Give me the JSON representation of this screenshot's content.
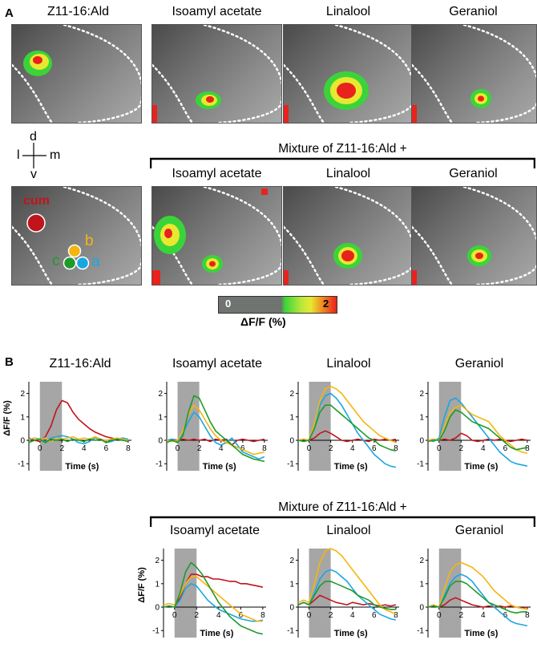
{
  "panel_a": {
    "letter": "A",
    "titles": [
      "Z11-16:Ald",
      "Isoamyl acetate",
      "Linalool",
      "Geraniol"
    ],
    "orientation": {
      "d": "d",
      "l": "l",
      "m": "m",
      "v": "v"
    },
    "mixture_label": "Mixture of Z11-16:Ald +",
    "mixture_titles": [
      "Isoamyl acetate",
      "Linalool",
      "Geraniol"
    ],
    "glomeruli": {
      "cum": "cum",
      "a": "a",
      "b": "b",
      "c": "c"
    },
    "colorbar": {
      "min_label": "0",
      "max_label": "2",
      "title": "ΔF/F (%)"
    }
  },
  "panel_b": {
    "letter": "B",
    "mixture_label": "Mixture of Z11-16:Ald +"
  },
  "colors": {
    "cum": "#c0141b",
    "a": "#1aa7e0",
    "b": "#f5b50f",
    "c": "#1f9a2a"
  },
  "chart_data": [
    {
      "type": "line",
      "title": "Z11-16:Ald",
      "xlabel": "Time (s)",
      "ylabel": "ΔF/F (%)",
      "xlim": [
        -1,
        8.3
      ],
      "ylim": [
        -1.3,
        2.5
      ],
      "x_ticks": [
        0,
        2,
        4,
        6,
        8
      ],
      "y_ticks": [
        -1,
        0,
        1,
        2
      ],
      "stimulus": [
        0,
        2
      ],
      "show_ylabel": true,
      "x": [
        -1,
        -0.5,
        0,
        0.5,
        1,
        1.5,
        2,
        2.5,
        3,
        3.5,
        4,
        4.5,
        5,
        5.5,
        6,
        6.5,
        7,
        7.5,
        8
      ],
      "series": [
        {
          "name": "cum",
          "values": [
            0.1,
            0,
            -0.05,
            0.15,
            0.6,
            1.3,
            1.7,
            1.6,
            1.2,
            0.9,
            0.7,
            0.5,
            0.35,
            0.25,
            0.15,
            0.1,
            0.05,
            0.0,
            0.0
          ]
        },
        {
          "name": "a",
          "values": [
            0,
            0.1,
            0.05,
            -0.05,
            0.1,
            0.15,
            0.2,
            0.15,
            0.05,
            -0.1,
            -0.15,
            -0.05,
            0.1,
            0.05,
            -0.1,
            -0.05,
            0.05,
            0.1,
            0.05
          ]
        },
        {
          "name": "b",
          "values": [
            0.05,
            0.1,
            0,
            0.1,
            -0.05,
            0.1,
            0.05,
            0.1,
            0.15,
            0.05,
            0.1,
            0.05,
            0.15,
            0.05,
            0.0,
            0.05,
            0.1,
            0.05,
            0.0
          ]
        },
        {
          "name": "c",
          "values": [
            -0.1,
            0,
            0.05,
            -0.1,
            0.05,
            0,
            0.05,
            -0.05,
            0.05,
            0,
            -0.05,
            0.05,
            0,
            0.05,
            -0.1,
            0,
            0.05,
            0,
            -0.05
          ]
        }
      ]
    },
    {
      "type": "line",
      "title": "Isoamyl acetate",
      "xlabel": "Time (s)",
      "ylabel": "",
      "xlim": [
        -1,
        8.3
      ],
      "ylim": [
        -1.3,
        2.5
      ],
      "x_ticks": [
        0,
        2,
        4,
        6,
        8
      ],
      "y_ticks": [
        -1,
        0,
        1,
        2
      ],
      "stimulus": [
        0,
        2
      ],
      "show_ylabel": false,
      "x": [
        -1,
        -0.5,
        0,
        0.5,
        1,
        1.5,
        2,
        2.5,
        3,
        3.5,
        4,
        4.5,
        5,
        5.5,
        6,
        6.5,
        7,
        7.5,
        8
      ],
      "series": [
        {
          "name": "cum",
          "values": [
            0,
            0.05,
            0,
            0.05,
            0,
            0.05,
            0,
            0.05,
            -0.05,
            0.05,
            0,
            0.05,
            -0.2,
            0,
            0.05,
            0,
            -0.05,
            0,
            0.05
          ]
        },
        {
          "name": "a",
          "values": [
            0,
            0.05,
            -0.05,
            0.3,
            0.8,
            1.2,
            1.0,
            0.6,
            0.2,
            -0.1,
            -0.2,
            -0.1,
            0.1,
            -0.2,
            -0.5,
            -0.6,
            -0.7,
            -0.8,
            -0.7
          ]
        },
        {
          "name": "b",
          "values": [
            0,
            -0.05,
            0,
            0.4,
            1.1,
            1.5,
            1.3,
            0.9,
            0.5,
            0.2,
            0,
            -0.1,
            -0.2,
            -0.3,
            -0.4,
            -0.5,
            -0.6,
            -0.55,
            -0.5
          ]
        },
        {
          "name": "c",
          "values": [
            -0.1,
            0,
            -0.1,
            0.2,
            1.2,
            1.9,
            1.8,
            1.3,
            0.8,
            0.4,
            0.2,
            0,
            -0.2,
            -0.4,
            -0.6,
            -0.7,
            -0.8,
            -0.85,
            -0.9
          ]
        }
      ]
    },
    {
      "type": "line",
      "title": "Linalool",
      "xlabel": "Time (s)",
      "ylabel": "",
      "xlim": [
        -1,
        8.3
      ],
      "ylim": [
        -1.3,
        2.5
      ],
      "x_ticks": [
        0,
        2,
        4,
        6,
        8
      ],
      "y_ticks": [
        -1,
        0,
        1,
        2
      ],
      "stimulus": [
        0,
        2
      ],
      "show_ylabel": false,
      "x": [
        -1,
        -0.5,
        0,
        0.5,
        1,
        1.5,
        2,
        2.5,
        3,
        3.5,
        4,
        4.5,
        5,
        5.5,
        6,
        6.5,
        7,
        7.5,
        8
      ],
      "series": [
        {
          "name": "cum",
          "values": [
            0,
            0.05,
            0,
            0.1,
            0.3,
            0.4,
            0.3,
            0.15,
            0,
            -0.05,
            0,
            0.05,
            0,
            -0.05,
            0.05,
            0,
            0.05,
            0,
            0.05
          ]
        },
        {
          "name": "a",
          "values": [
            0,
            0.05,
            0,
            0.6,
            1.5,
            1.9,
            2.0,
            1.8,
            1.5,
            1.1,
            0.7,
            0.3,
            0,
            -0.3,
            -0.6,
            -0.8,
            -1.0,
            -1.1,
            -1.15
          ]
        },
        {
          "name": "b",
          "values": [
            0,
            0.05,
            0,
            0.7,
            1.7,
            2.2,
            2.3,
            2.2,
            2.0,
            1.7,
            1.4,
            1.1,
            0.8,
            0.6,
            0.4,
            0.2,
            0.1,
            0,
            -0.1
          ]
        },
        {
          "name": "c",
          "values": [
            0,
            -0.05,
            0,
            0.5,
            1.2,
            1.5,
            1.5,
            1.3,
            1.1,
            0.9,
            0.7,
            0.5,
            0.3,
            0.1,
            0,
            -0.2,
            -0.3,
            -0.4,
            -0.45
          ]
        }
      ]
    },
    {
      "type": "line",
      "title": "Geraniol",
      "xlabel": "Time (s)",
      "ylabel": "",
      "xlim": [
        -1,
        8.3
      ],
      "ylim": [
        -1.3,
        2.5
      ],
      "x_ticks": [
        0,
        2,
        4,
        6,
        8
      ],
      "y_ticks": [
        -1,
        0,
        1,
        2
      ],
      "stimulus": [
        0,
        2
      ],
      "show_ylabel": false,
      "x": [
        -1,
        -0.5,
        0,
        0.5,
        1,
        1.5,
        2,
        2.5,
        3,
        3.5,
        4,
        4.5,
        5,
        5.5,
        6,
        6.5,
        7,
        7.5,
        8
      ],
      "series": [
        {
          "name": "cum",
          "values": [
            0,
            0.05,
            0,
            0.05,
            0,
            0.1,
            0.3,
            0.2,
            0,
            -0.05,
            0,
            0.05,
            0,
            0.05,
            0,
            -0.05,
            0,
            0.05,
            0
          ]
        },
        {
          "name": "a",
          "values": [
            0,
            -0.05,
            0.1,
            1.0,
            1.7,
            1.8,
            1.6,
            1.3,
            1.0,
            0.7,
            0.4,
            0.1,
            -0.2,
            -0.5,
            -0.7,
            -0.9,
            -1.0,
            -1.05,
            -1.1
          ]
        },
        {
          "name": "b",
          "values": [
            0,
            0.05,
            0,
            0.6,
            1.2,
            1.4,
            1.5,
            1.3,
            1.1,
            1.0,
            0.9,
            0.8,
            0.5,
            0.2,
            0,
            -0.2,
            -0.4,
            -0.5,
            -0.55
          ]
        },
        {
          "name": "c",
          "values": [
            -0.05,
            0,
            0,
            0.4,
            1.0,
            1.3,
            1.2,
            1.0,
            0.8,
            0.7,
            0.6,
            0.5,
            0.3,
            0.1,
            -0.1,
            -0.3,
            -0.4,
            -0.35,
            -0.3
          ]
        }
      ]
    },
    {
      "type": "line",
      "title": "Isoamyl acetate",
      "xlabel": "Time (s)",
      "ylabel": "ΔF/F (%)",
      "xlim": [
        -1,
        8.3
      ],
      "ylim": [
        -1.3,
        2.5
      ],
      "x_ticks": [
        0,
        2,
        4,
        6,
        8
      ],
      "y_ticks": [
        -1,
        0,
        1,
        2
      ],
      "stimulus": [
        0,
        2
      ],
      "show_ylabel": true,
      "x": [
        -1,
        -0.5,
        0,
        0.5,
        1,
        1.5,
        2,
        2.5,
        3,
        3.5,
        4,
        4.5,
        5,
        5.5,
        6,
        6.5,
        7,
        7.5,
        8
      ],
      "series": [
        {
          "name": "cum",
          "values": [
            0,
            0.05,
            0,
            0.4,
            1.0,
            1.4,
            1.4,
            1.3,
            1.3,
            1.2,
            1.2,
            1.15,
            1.1,
            1.1,
            1.0,
            1.0,
            0.95,
            0.9,
            0.85
          ]
        },
        {
          "name": "a",
          "values": [
            0,
            0.05,
            0,
            0.3,
            0.8,
            1.0,
            0.9,
            0.6,
            0.3,
            0.1,
            -0.1,
            -0.2,
            -0.3,
            -0.4,
            -0.5,
            -0.55,
            -0.6,
            -0.6,
            -0.55
          ]
        },
        {
          "name": "b",
          "values": [
            0.1,
            0.15,
            0.1,
            0.5,
            1.0,
            1.3,
            1.3,
            1.1,
            0.9,
            0.7,
            0.5,
            0.3,
            0.1,
            -0.1,
            -0.3,
            -0.4,
            -0.5,
            -0.6,
            -0.6
          ]
        },
        {
          "name": "c",
          "values": [
            0,
            0.05,
            0,
            0.6,
            1.5,
            1.9,
            1.7,
            1.4,
            1.0,
            0.6,
            0.2,
            -0.1,
            -0.4,
            -0.6,
            -0.8,
            -0.9,
            -1.0,
            -1.1,
            -1.15
          ]
        }
      ]
    },
    {
      "type": "line",
      "title": "Linalool",
      "xlabel": "Time (s)",
      "ylabel": "",
      "xlim": [
        -1,
        8.3
      ],
      "ylim": [
        -1.3,
        2.5
      ],
      "x_ticks": [
        0,
        2,
        4,
        6,
        8
      ],
      "y_ticks": [
        -1,
        0,
        1,
        2
      ],
      "stimulus": [
        0,
        2
      ],
      "show_ylabel": false,
      "x": [
        -1,
        -0.5,
        0,
        0.5,
        1,
        1.5,
        2,
        2.5,
        3,
        3.5,
        4,
        4.5,
        5,
        5.5,
        6,
        6.5,
        7,
        7.5,
        8
      ],
      "series": [
        {
          "name": "cum",
          "values": [
            0.1,
            0.2,
            0.1,
            0.3,
            0.5,
            0.4,
            0.3,
            0.2,
            0.15,
            0.1,
            0.2,
            0.15,
            0.1,
            0.15,
            0.1,
            0.05,
            0.1,
            0.05,
            0.1
          ]
        },
        {
          "name": "a",
          "values": [
            0.1,
            0.2,
            0.1,
            0.6,
            1.2,
            1.5,
            1.6,
            1.5,
            1.3,
            1.1,
            0.8,
            0.5,
            0.3,
            0.1,
            -0.1,
            -0.3,
            -0.4,
            -0.5,
            -0.55
          ]
        },
        {
          "name": "b",
          "values": [
            0.2,
            0.3,
            0.2,
            1.0,
            1.9,
            2.4,
            2.5,
            2.4,
            2.2,
            1.9,
            1.6,
            1.3,
            1.0,
            0.7,
            0.4,
            0.1,
            -0.1,
            -0.2,
            -0.3
          ]
        },
        {
          "name": "c",
          "values": [
            0.1,
            0.2,
            0.1,
            0.5,
            0.9,
            1.1,
            1.1,
            1.0,
            0.9,
            0.8,
            0.7,
            0.5,
            0.4,
            0.3,
            0.1,
            0,
            -0.05,
            -0.1,
            -0.1
          ]
        }
      ]
    },
    {
      "type": "line",
      "title": "Geraniol",
      "xlabel": "Time (s)",
      "ylabel": "",
      "xlim": [
        -1,
        8.3
      ],
      "ylim": [
        -1.3,
        2.5
      ],
      "x_ticks": [
        0,
        2,
        4,
        6,
        8
      ],
      "y_ticks": [
        -1,
        0,
        1,
        2
      ],
      "stimulus": [
        0,
        2
      ],
      "show_ylabel": false,
      "x": [
        -1,
        -0.5,
        0,
        0.5,
        1,
        1.5,
        2,
        2.5,
        3,
        3.5,
        4,
        4.5,
        5,
        5.5,
        6,
        6.5,
        7,
        7.5,
        8
      ],
      "series": [
        {
          "name": "cum",
          "values": [
            0,
            0.05,
            0,
            0.1,
            0.3,
            0.4,
            0.3,
            0.2,
            0.1,
            0.05,
            0,
            0.05,
            0,
            0.05,
            0,
            0.05,
            0,
            -0.05,
            0
          ]
        },
        {
          "name": "a",
          "values": [
            0,
            0.05,
            0,
            0.5,
            1.0,
            1.3,
            1.4,
            1.3,
            1.1,
            0.8,
            0.5,
            0.2,
            0,
            -0.2,
            -0.4,
            -0.6,
            -0.7,
            -0.75,
            -0.8
          ]
        },
        {
          "name": "b",
          "values": [
            0,
            0.1,
            0,
            0.8,
            1.5,
            1.8,
            1.9,
            1.8,
            1.7,
            1.5,
            1.3,
            1.0,
            0.7,
            0.5,
            0.3,
            0.1,
            0,
            -0.05,
            -0.1
          ]
        },
        {
          "name": "c",
          "values": [
            0,
            0.05,
            0,
            0.4,
            0.9,
            1.1,
            1.1,
            1.0,
            0.8,
            0.6,
            0.4,
            0.2,
            0.1,
            0,
            -0.1,
            -0.2,
            -0.25,
            -0.2,
            -0.2
          ]
        }
      ]
    }
  ]
}
